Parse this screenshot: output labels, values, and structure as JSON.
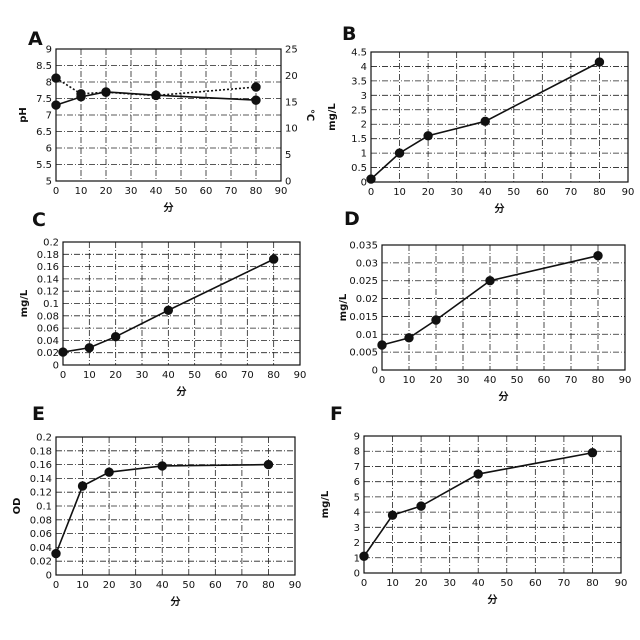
{
  "chart_data": [
    {
      "panel": "A",
      "type": "line",
      "xlabel": "分",
      "ylabel": "pH",
      "y2label": "℃",
      "xlim": [
        0,
        90
      ],
      "xticks": [
        0,
        10,
        20,
        30,
        40,
        50,
        60,
        70,
        80,
        90
      ],
      "ylim": [
        5,
        9
      ],
      "yticks": [
        5,
        5.5,
        6,
        6.5,
        7,
        7.5,
        8,
        8.5,
        9
      ],
      "ytick_labels": [
        "5",
        "5.5",
        "6",
        "6.5",
        "7",
        "7.5",
        "8",
        "8.5",
        "9"
      ],
      "y2lim": [
        0,
        25
      ],
      "y2ticks": [
        0,
        5,
        10,
        15,
        20,
        25
      ],
      "grid": true,
      "series": [
        {
          "axis": "left",
          "style": "solid",
          "x": [
            0,
            10,
            20,
            40,
            80
          ],
          "y": [
            7.3,
            7.55,
            7.7,
            7.6,
            7.45
          ]
        },
        {
          "axis": "right",
          "style": "dotted",
          "x": [
            0,
            10,
            20,
            40,
            80
          ],
          "y": [
            19.5,
            16.5,
            16.8,
            16.2,
            17.8
          ]
        }
      ]
    },
    {
      "panel": "B",
      "type": "line",
      "xlabel": "分",
      "ylabel": "mg/L",
      "xlim": [
        0,
        90
      ],
      "xticks": [
        0,
        10,
        20,
        30,
        40,
        50,
        60,
        70,
        80,
        90
      ],
      "ylim": [
        0,
        4.5
      ],
      "yticks": [
        0,
        0.5,
        1,
        1.5,
        2,
        2.5,
        3,
        3.5,
        4,
        4.5
      ],
      "ytick_labels": [
        "0",
        "0.5",
        "1",
        "1.5",
        "2",
        "2.5",
        "3",
        "3.5",
        "4",
        "4.5"
      ],
      "grid": true,
      "series": [
        {
          "style": "solid",
          "x": [
            0,
            10,
            20,
            40,
            80
          ],
          "y": [
            0.1,
            1.0,
            1.6,
            2.1,
            4.15
          ]
        }
      ]
    },
    {
      "panel": "C",
      "type": "line",
      "xlabel": "分",
      "ylabel": "mg/L",
      "xlim": [
        0,
        90
      ],
      "xticks": [
        0,
        10,
        20,
        30,
        40,
        50,
        60,
        70,
        80,
        90
      ],
      "ylim": [
        0,
        0.2
      ],
      "yticks": [
        0,
        0.02,
        0.04,
        0.06,
        0.08,
        0.1,
        0.12,
        0.14,
        0.16,
        0.18,
        0.2
      ],
      "ytick_labels": [
        "0",
        "0.02",
        "0.04",
        "0.06",
        "0.08",
        "0.1",
        "0.12",
        "0.14",
        "0.16",
        "0.18",
        "0.2"
      ],
      "grid": true,
      "series": [
        {
          "style": "solid",
          "x": [
            0,
            10,
            20,
            40,
            80
          ],
          "y": [
            0.021,
            0.028,
            0.046,
            0.089,
            0.172
          ]
        }
      ]
    },
    {
      "panel": "D",
      "type": "line",
      "xlabel": "分",
      "ylabel": "mg/L",
      "xlim": [
        0,
        90
      ],
      "xticks": [
        0,
        10,
        20,
        30,
        40,
        50,
        60,
        70,
        80,
        90
      ],
      "ylim": [
        0,
        0.035
      ],
      "yticks": [
        0,
        0.005,
        0.01,
        0.015,
        0.02,
        0.025,
        0.03,
        0.035
      ],
      "ytick_labels": [
        "0",
        "0.005",
        "0.01",
        "0.015",
        "0.02",
        "0.025",
        "0.03",
        "0.035"
      ],
      "grid": true,
      "series": [
        {
          "style": "solid",
          "x": [
            0,
            10,
            20,
            40,
            80
          ],
          "y": [
            0.007,
            0.009,
            0.014,
            0.025,
            0.032
          ]
        }
      ]
    },
    {
      "panel": "E",
      "type": "line",
      "xlabel": "分",
      "ylabel": "OD",
      "xlim": [
        0,
        90
      ],
      "xticks": [
        0,
        10,
        20,
        30,
        40,
        50,
        60,
        70,
        80,
        90
      ],
      "ylim": [
        0,
        0.2
      ],
      "yticks": [
        0,
        0.02,
        0.04,
        0.06,
        0.08,
        0.1,
        0.12,
        0.14,
        0.16,
        0.18,
        0.2
      ],
      "ytick_labels": [
        "0",
        "0.02",
        "0.04",
        "0.06",
        "0.08",
        "0.1",
        "0.12",
        "0.14",
        "0.16",
        "0.18",
        "0.2"
      ],
      "grid": true,
      "series": [
        {
          "style": "solid",
          "x": [
            0,
            10,
            20,
            40,
            80
          ],
          "y": [
            0.031,
            0.129,
            0.149,
            0.158,
            0.16
          ]
        }
      ]
    },
    {
      "panel": "F",
      "type": "line",
      "xlabel": "分",
      "ylabel": "mg/L",
      "xlim": [
        0,
        90
      ],
      "xticks": [
        0,
        10,
        20,
        30,
        40,
        50,
        60,
        70,
        80,
        90
      ],
      "ylim": [
        0,
        9
      ],
      "yticks": [
        0,
        1,
        2,
        3,
        4,
        5,
        6,
        7,
        8,
        9
      ],
      "ytick_labels": [
        "0",
        "1",
        "2",
        "3",
        "4",
        "5",
        "6",
        "7",
        "8",
        "9"
      ],
      "grid": true,
      "series": [
        {
          "style": "solid",
          "x": [
            0,
            10,
            20,
            40,
            80
          ],
          "y": [
            1.1,
            3.8,
            4.4,
            6.5,
            7.9
          ]
        }
      ]
    }
  ]
}
